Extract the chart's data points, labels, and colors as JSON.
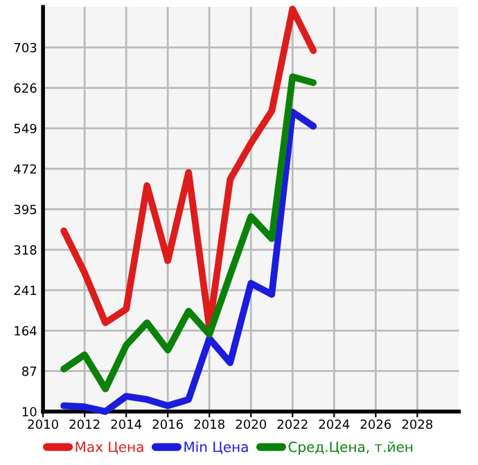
{
  "chart_data": {
    "type": "line",
    "x": [
      2011,
      2012,
      2013,
      2014,
      2015,
      2016,
      2017,
      2018,
      2019,
      2020,
      2021,
      2022,
      2023
    ],
    "series": [
      {
        "name": "Max Цена",
        "color": "#dd1c1c",
        "values": [
          354,
          274,
          179,
          205,
          440,
          297,
          465,
          170,
          452,
          521,
          582,
          776,
          697
        ]
      },
      {
        "name": "Min Цена",
        "color": "#1c1cdd",
        "values": [
          21,
          19,
          10,
          39,
          33,
          21,
          33,
          149,
          103,
          254,
          233,
          580,
          553
        ]
      },
      {
        "name": "Сред.Цена, т.йен",
        "color": "#0a820a",
        "values": [
          91,
          118,
          53,
          136,
          179,
          127,
          201,
          157,
          270,
          381,
          339,
          647,
          636
        ]
      }
    ],
    "xlim": [
      2010,
      2030
    ],
    "xticks": [
      2010,
      2012,
      2014,
      2016,
      2018,
      2020,
      2022,
      2024,
      2026,
      2028
    ],
    "ylim": [
      10,
      780
    ],
    "yticks": [
      10,
      87,
      164,
      241,
      318,
      395,
      472,
      549,
      626,
      703
    ],
    "grid": true,
    "legend": "bottom",
    "marker": "none",
    "line_style": "solid"
  }
}
